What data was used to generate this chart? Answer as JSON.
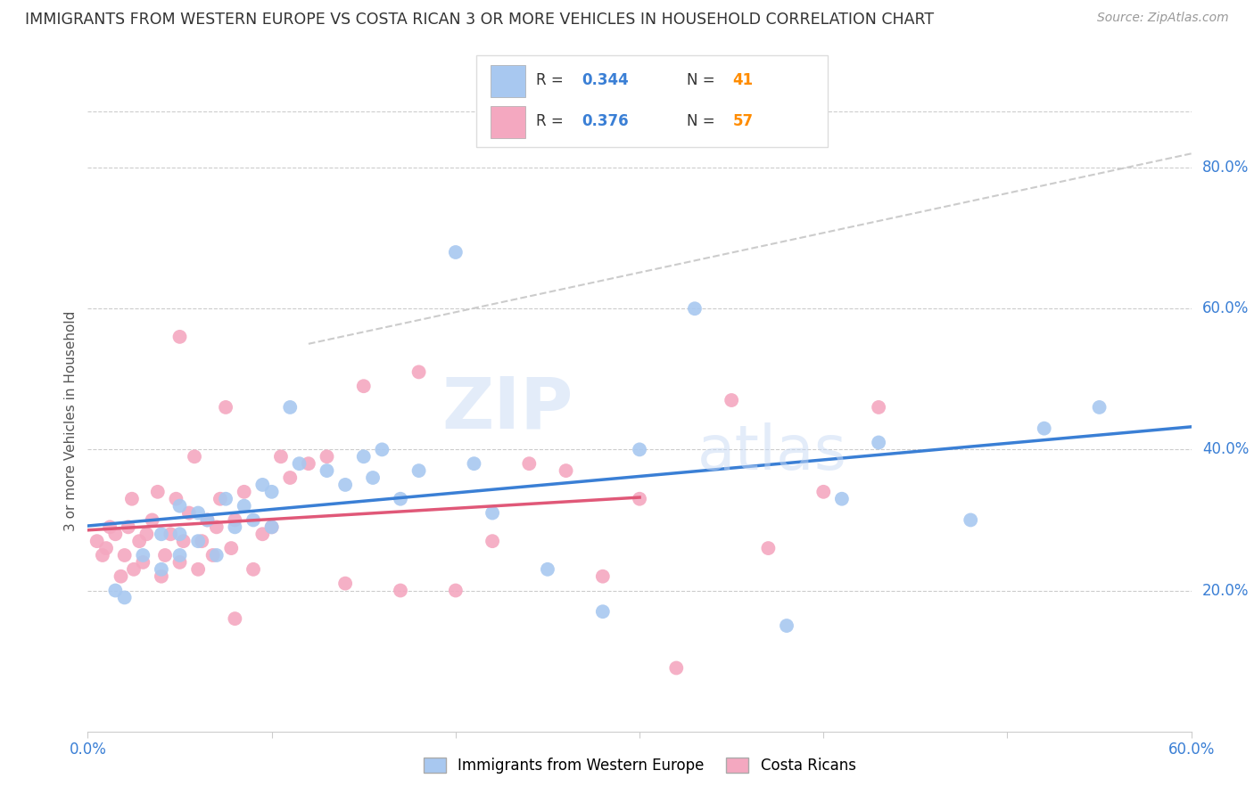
{
  "title": "IMMIGRANTS FROM WESTERN EUROPE VS COSTA RICAN 3 OR MORE VEHICLES IN HOUSEHOLD CORRELATION CHART",
  "source": "Source: ZipAtlas.com",
  "ylabel": "3 or more Vehicles in Household",
  "ylabel_right_ticks": [
    "20.0%",
    "40.0%",
    "60.0%",
    "80.0%"
  ],
  "ylabel_right_vals": [
    0.2,
    0.4,
    0.6,
    0.8
  ],
  "xlim": [
    0.0,
    0.6
  ],
  "ylim": [
    0.0,
    0.88
  ],
  "blue_R": "0.344",
  "blue_N": "41",
  "pink_R": "0.376",
  "pink_N": "57",
  "blue_color": "#a8c8f0",
  "pink_color": "#f4a8c0",
  "blue_line_color": "#3a7fd5",
  "pink_line_color": "#e05878",
  "dashed_line_color": "#cccccc",
  "watermark_zip": "ZIP",
  "watermark_atlas": "atlas",
  "legend_text_color": "#3a7fd5",
  "legend_N_color": "#ff8c00",
  "blue_scatter_x": [
    0.015,
    0.02,
    0.03,
    0.04,
    0.04,
    0.05,
    0.05,
    0.05,
    0.06,
    0.06,
    0.065,
    0.07,
    0.075,
    0.08,
    0.085,
    0.09,
    0.095,
    0.1,
    0.1,
    0.11,
    0.115,
    0.13,
    0.14,
    0.15,
    0.155,
    0.16,
    0.17,
    0.18,
    0.2,
    0.21,
    0.22,
    0.25,
    0.28,
    0.3,
    0.33,
    0.38,
    0.41,
    0.43,
    0.48,
    0.52,
    0.55
  ],
  "blue_scatter_y": [
    0.2,
    0.19,
    0.25,
    0.23,
    0.28,
    0.25,
    0.28,
    0.32,
    0.27,
    0.31,
    0.3,
    0.25,
    0.33,
    0.29,
    0.32,
    0.3,
    0.35,
    0.29,
    0.34,
    0.46,
    0.38,
    0.37,
    0.35,
    0.39,
    0.36,
    0.4,
    0.33,
    0.37,
    0.68,
    0.38,
    0.31,
    0.23,
    0.17,
    0.4,
    0.6,
    0.15,
    0.33,
    0.41,
    0.3,
    0.43,
    0.46
  ],
  "pink_scatter_x": [
    0.005,
    0.008,
    0.01,
    0.012,
    0.015,
    0.018,
    0.02,
    0.022,
    0.024,
    0.025,
    0.028,
    0.03,
    0.032,
    0.035,
    0.038,
    0.04,
    0.042,
    0.045,
    0.048,
    0.05,
    0.052,
    0.055,
    0.058,
    0.06,
    0.062,
    0.065,
    0.068,
    0.07,
    0.072,
    0.075,
    0.078,
    0.08,
    0.085,
    0.09,
    0.095,
    0.1,
    0.105,
    0.11,
    0.12,
    0.13,
    0.14,
    0.15,
    0.17,
    0.18,
    0.2,
    0.22,
    0.24,
    0.26,
    0.28,
    0.3,
    0.32,
    0.35,
    0.37,
    0.4,
    0.43,
    0.05,
    0.08
  ],
  "pink_scatter_y": [
    0.27,
    0.25,
    0.26,
    0.29,
    0.28,
    0.22,
    0.25,
    0.29,
    0.33,
    0.23,
    0.27,
    0.24,
    0.28,
    0.3,
    0.34,
    0.22,
    0.25,
    0.28,
    0.33,
    0.24,
    0.27,
    0.31,
    0.39,
    0.23,
    0.27,
    0.3,
    0.25,
    0.29,
    0.33,
    0.46,
    0.26,
    0.3,
    0.34,
    0.23,
    0.28,
    0.29,
    0.39,
    0.36,
    0.38,
    0.39,
    0.21,
    0.49,
    0.2,
    0.51,
    0.2,
    0.27,
    0.38,
    0.37,
    0.22,
    0.33,
    0.09,
    0.47,
    0.26,
    0.34,
    0.46,
    0.56,
    0.16
  ],
  "blue_line_x": [
    0.0,
    0.6
  ],
  "blue_line_y": [
    0.27,
    0.46
  ],
  "pink_line_x": [
    0.0,
    0.3
  ],
  "pink_line_y": [
    0.265,
    0.39
  ],
  "dash_line_x": [
    0.12,
    0.6
  ],
  "dash_line_y": [
    0.55,
    0.82
  ]
}
